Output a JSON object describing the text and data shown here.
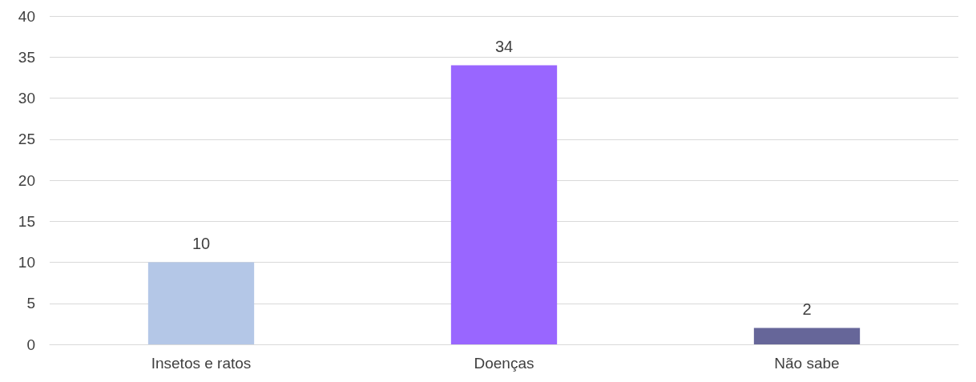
{
  "chart_data": {
    "type": "bar",
    "categories": [
      "Insetos e ratos",
      "Doenças",
      "Não sabe"
    ],
    "values": [
      10,
      34,
      2
    ],
    "colors": [
      "#b4c7e7",
      "#9966ff",
      "#666699"
    ],
    "ylim": [
      0,
      40
    ],
    "yticks": [
      0,
      5,
      10,
      15,
      20,
      25,
      30,
      35,
      40
    ],
    "grid": "y",
    "data_labels": true
  }
}
